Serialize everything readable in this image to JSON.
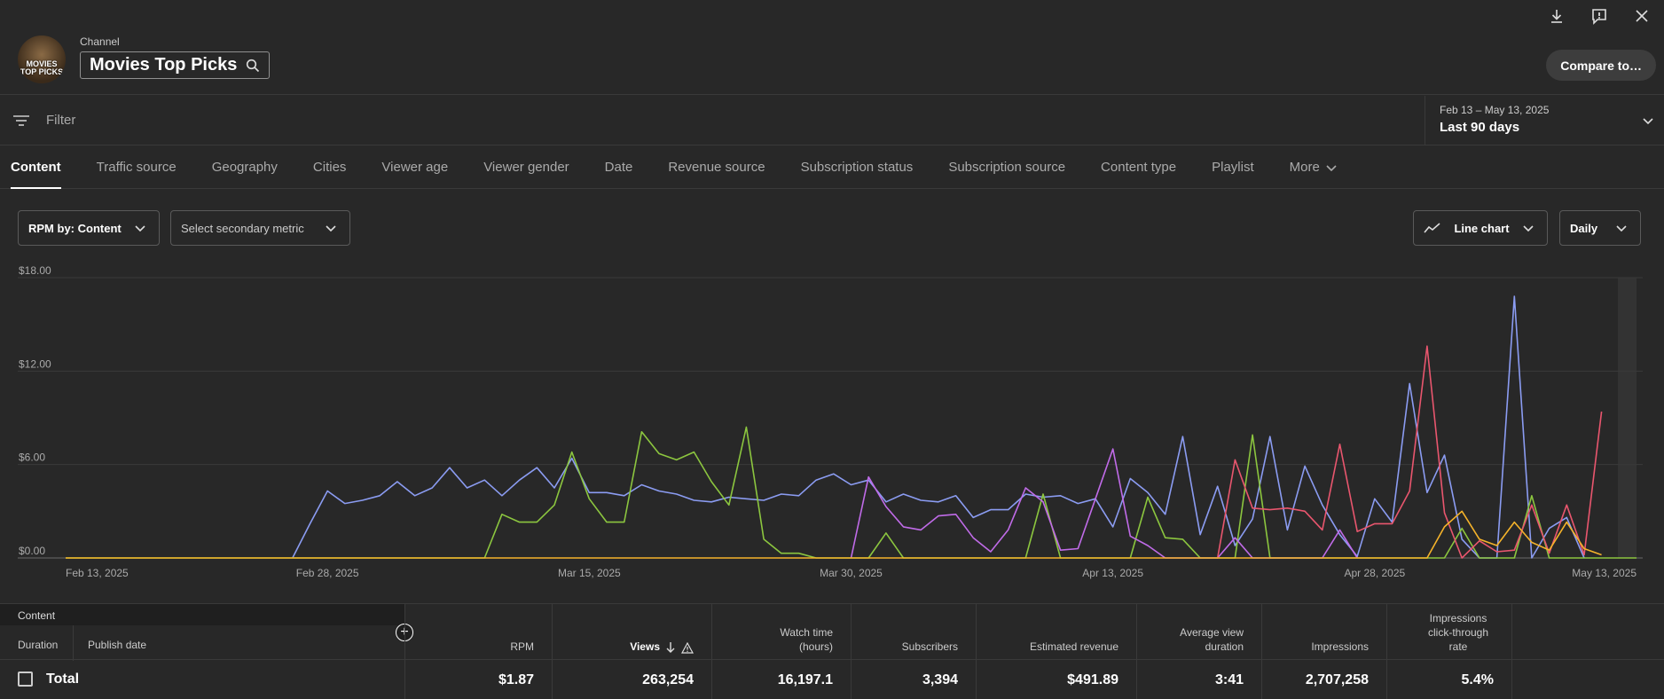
{
  "header": {
    "channel_label": "Channel",
    "channel_name": "Movies Top Picks",
    "avatar_text": "MOVIES TOP PICKS",
    "compare_label": "Compare to…"
  },
  "filter": {
    "placeholder": "Filter",
    "date_sub": "Feb 13 – May 13, 2025",
    "date_main": "Last 90 days"
  },
  "tabs": [
    "Content",
    "Traffic source",
    "Geography",
    "Cities",
    "Viewer age",
    "Viewer gender",
    "Date",
    "Revenue source",
    "Subscription status",
    "Subscription source",
    "Content type",
    "Playlist",
    "More"
  ],
  "controls": {
    "metric": "RPM by: Content",
    "secondary": "Select secondary metric",
    "chart_type": "Line chart",
    "granularity": "Daily"
  },
  "chart_data": {
    "type": "line",
    "ylim": [
      0,
      18
    ],
    "yticks": [
      "$18.00",
      "$12.00",
      "$6.00",
      "$0.00"
    ],
    "xticks": [
      "Feb 13, 2025",
      "Feb 28, 2025",
      "Mar 15, 2025",
      "Mar 30, 2025",
      "Apr 13, 2025",
      "Apr 28, 2025",
      "May 13, 2025"
    ],
    "days": 90,
    "series": [
      {
        "color": "#8b9cf2",
        "points": [
          [
            13,
            0
          ],
          [
            14,
            2.2
          ],
          [
            15,
            4.3
          ],
          [
            16,
            3.5
          ],
          [
            17,
            3.7
          ],
          [
            18,
            4.0
          ],
          [
            19,
            4.9
          ],
          [
            20,
            4.0
          ],
          [
            21,
            4.5
          ],
          [
            22,
            5.8
          ],
          [
            23,
            4.5
          ],
          [
            24,
            5.0
          ],
          [
            25,
            4.0
          ],
          [
            26,
            5.0
          ],
          [
            27,
            5.8
          ],
          [
            28,
            4.5
          ],
          [
            29,
            6.4
          ],
          [
            30,
            4.2
          ],
          [
            31,
            4.2
          ],
          [
            32,
            4.0
          ],
          [
            33,
            4.7
          ],
          [
            34,
            4.3
          ],
          [
            35,
            4.1
          ],
          [
            36,
            3.7
          ],
          [
            37,
            3.6
          ],
          [
            38,
            3.9
          ],
          [
            39,
            3.8
          ],
          [
            40,
            3.7
          ],
          [
            41,
            4.1
          ],
          [
            42,
            4.0
          ],
          [
            43,
            5.0
          ],
          [
            44,
            5.4
          ],
          [
            45,
            4.7
          ],
          [
            46,
            5.0
          ],
          [
            47,
            3.6
          ],
          [
            48,
            4.1
          ],
          [
            49,
            3.7
          ],
          [
            50,
            3.6
          ],
          [
            51,
            4.0
          ],
          [
            52,
            2.6
          ],
          [
            53,
            3.1
          ],
          [
            54,
            3.1
          ],
          [
            55,
            4.1
          ],
          [
            56,
            3.9
          ],
          [
            57,
            4.0
          ],
          [
            58,
            3.5
          ],
          [
            59,
            3.8
          ],
          [
            60,
            2.0
          ],
          [
            61,
            5.1
          ],
          [
            62,
            4.2
          ],
          [
            63,
            2.8
          ],
          [
            64,
            7.8
          ],
          [
            65,
            1.5
          ],
          [
            66,
            4.6
          ],
          [
            67,
            0.8
          ],
          [
            68,
            2.5
          ],
          [
            69,
            7.8
          ],
          [
            70,
            1.8
          ],
          [
            71,
            5.9
          ],
          [
            72,
            3.4
          ],
          [
            73,
            1.5
          ],
          [
            74,
            0.1
          ],
          [
            75,
            3.8
          ],
          [
            76,
            2.3
          ],
          [
            77,
            11.2
          ],
          [
            78,
            4.2
          ],
          [
            79,
            6.6
          ],
          [
            80,
            1.2
          ],
          [
            81,
            0
          ],
          [
            82,
            0
          ],
          [
            83,
            16.8
          ],
          [
            84,
            0
          ],
          [
            85,
            1.9
          ],
          [
            86,
            2.6
          ],
          [
            87,
            0
          ]
        ]
      },
      {
        "color": "#8cc63f",
        "points": [
          [
            0,
            0
          ],
          [
            24,
            0
          ],
          [
            25,
            2.8
          ],
          [
            26,
            2.3
          ],
          [
            27,
            2.3
          ],
          [
            28,
            3.4
          ],
          [
            29,
            6.8
          ],
          [
            30,
            3.8
          ],
          [
            31,
            2.3
          ],
          [
            32,
            2.3
          ],
          [
            33,
            8.1
          ],
          [
            34,
            6.7
          ],
          [
            35,
            6.3
          ],
          [
            36,
            6.8
          ],
          [
            37,
            4.9
          ],
          [
            38,
            3.4
          ],
          [
            39,
            8.4
          ],
          [
            40,
            1.2
          ],
          [
            41,
            0.3
          ],
          [
            42,
            0.3
          ],
          [
            43,
            0
          ],
          [
            46,
            0
          ],
          [
            47,
            1.6
          ],
          [
            48,
            0
          ],
          [
            55,
            0
          ],
          [
            56,
            4.1
          ],
          [
            57,
            0
          ],
          [
            61,
            0
          ],
          [
            62,
            3.9
          ],
          [
            63,
            1.3
          ],
          [
            64,
            1.2
          ],
          [
            65,
            0
          ],
          [
            67,
            0
          ],
          [
            68,
            7.9
          ],
          [
            69,
            0
          ],
          [
            79,
            0
          ],
          [
            80,
            1.9
          ],
          [
            81,
            0
          ],
          [
            83,
            0
          ],
          [
            84,
            4.0
          ],
          [
            85,
            0
          ],
          [
            90,
            0
          ]
        ]
      },
      {
        "color": "#c06be8",
        "points": [
          [
            45,
            0
          ],
          [
            46,
            5.2
          ],
          [
            47,
            3.3
          ],
          [
            48,
            2.0
          ],
          [
            49,
            1.8
          ],
          [
            50,
            2.7
          ],
          [
            51,
            2.8
          ],
          [
            52,
            1.3
          ],
          [
            53,
            0.4
          ],
          [
            54,
            1.8
          ],
          [
            55,
            4.5
          ],
          [
            56,
            3.6
          ],
          [
            57,
            0.5
          ],
          [
            58,
            0.6
          ],
          [
            59,
            3.8
          ],
          [
            60,
            7.0
          ],
          [
            61,
            1.4
          ],
          [
            62,
            0.8
          ],
          [
            63,
            0
          ],
          [
            66,
            0
          ],
          [
            67,
            1.3
          ],
          [
            68,
            0
          ],
          [
            72,
            0
          ],
          [
            73,
            1.8
          ],
          [
            74,
            0
          ]
        ]
      },
      {
        "color": "#e9566e",
        "points": [
          [
            66,
            0
          ],
          [
            67,
            6.3
          ],
          [
            68,
            3.2
          ],
          [
            69,
            3.1
          ],
          [
            70,
            3.2
          ],
          [
            71,
            3.0
          ],
          [
            72,
            1.8
          ],
          [
            73,
            7.3
          ],
          [
            74,
            1.7
          ],
          [
            75,
            2.2
          ],
          [
            76,
            2.2
          ],
          [
            77,
            4.3
          ],
          [
            78,
            13.6
          ],
          [
            79,
            2.9
          ],
          [
            80,
            0
          ],
          [
            81,
            1.1
          ],
          [
            82,
            0.4
          ],
          [
            83,
            0.5
          ],
          [
            84,
            3.4
          ],
          [
            85,
            0.3
          ],
          [
            86,
            3.4
          ],
          [
            87,
            0.2
          ],
          [
            88,
            9.4
          ]
        ]
      },
      {
        "color": "#f5b32a",
        "points": [
          [
            0,
            0
          ],
          [
            78,
            0
          ],
          [
            79,
            2.0
          ],
          [
            80,
            3.0
          ],
          [
            81,
            1.2
          ],
          [
            82,
            0.8
          ],
          [
            83,
            2.3
          ],
          [
            84,
            1.0
          ],
          [
            85,
            0.5
          ],
          [
            86,
            2.3
          ],
          [
            87,
            0.6
          ],
          [
            88,
            0.2
          ]
        ]
      }
    ]
  },
  "table": {
    "content_label": "Content",
    "duration_label": "Duration",
    "publish_label": "Publish date",
    "columns": [
      "RPM",
      "Views",
      "Watch time (hours)",
      "Subscribers",
      "Estimated revenue",
      "Average view duration",
      "Impressions",
      "Impressions click-through rate"
    ],
    "total_label": "Total",
    "totals": [
      "$1.87",
      "263,254",
      "16,197.1",
      "3,394",
      "$491.89",
      "3:41",
      "2,707,258",
      "5.4%"
    ]
  }
}
